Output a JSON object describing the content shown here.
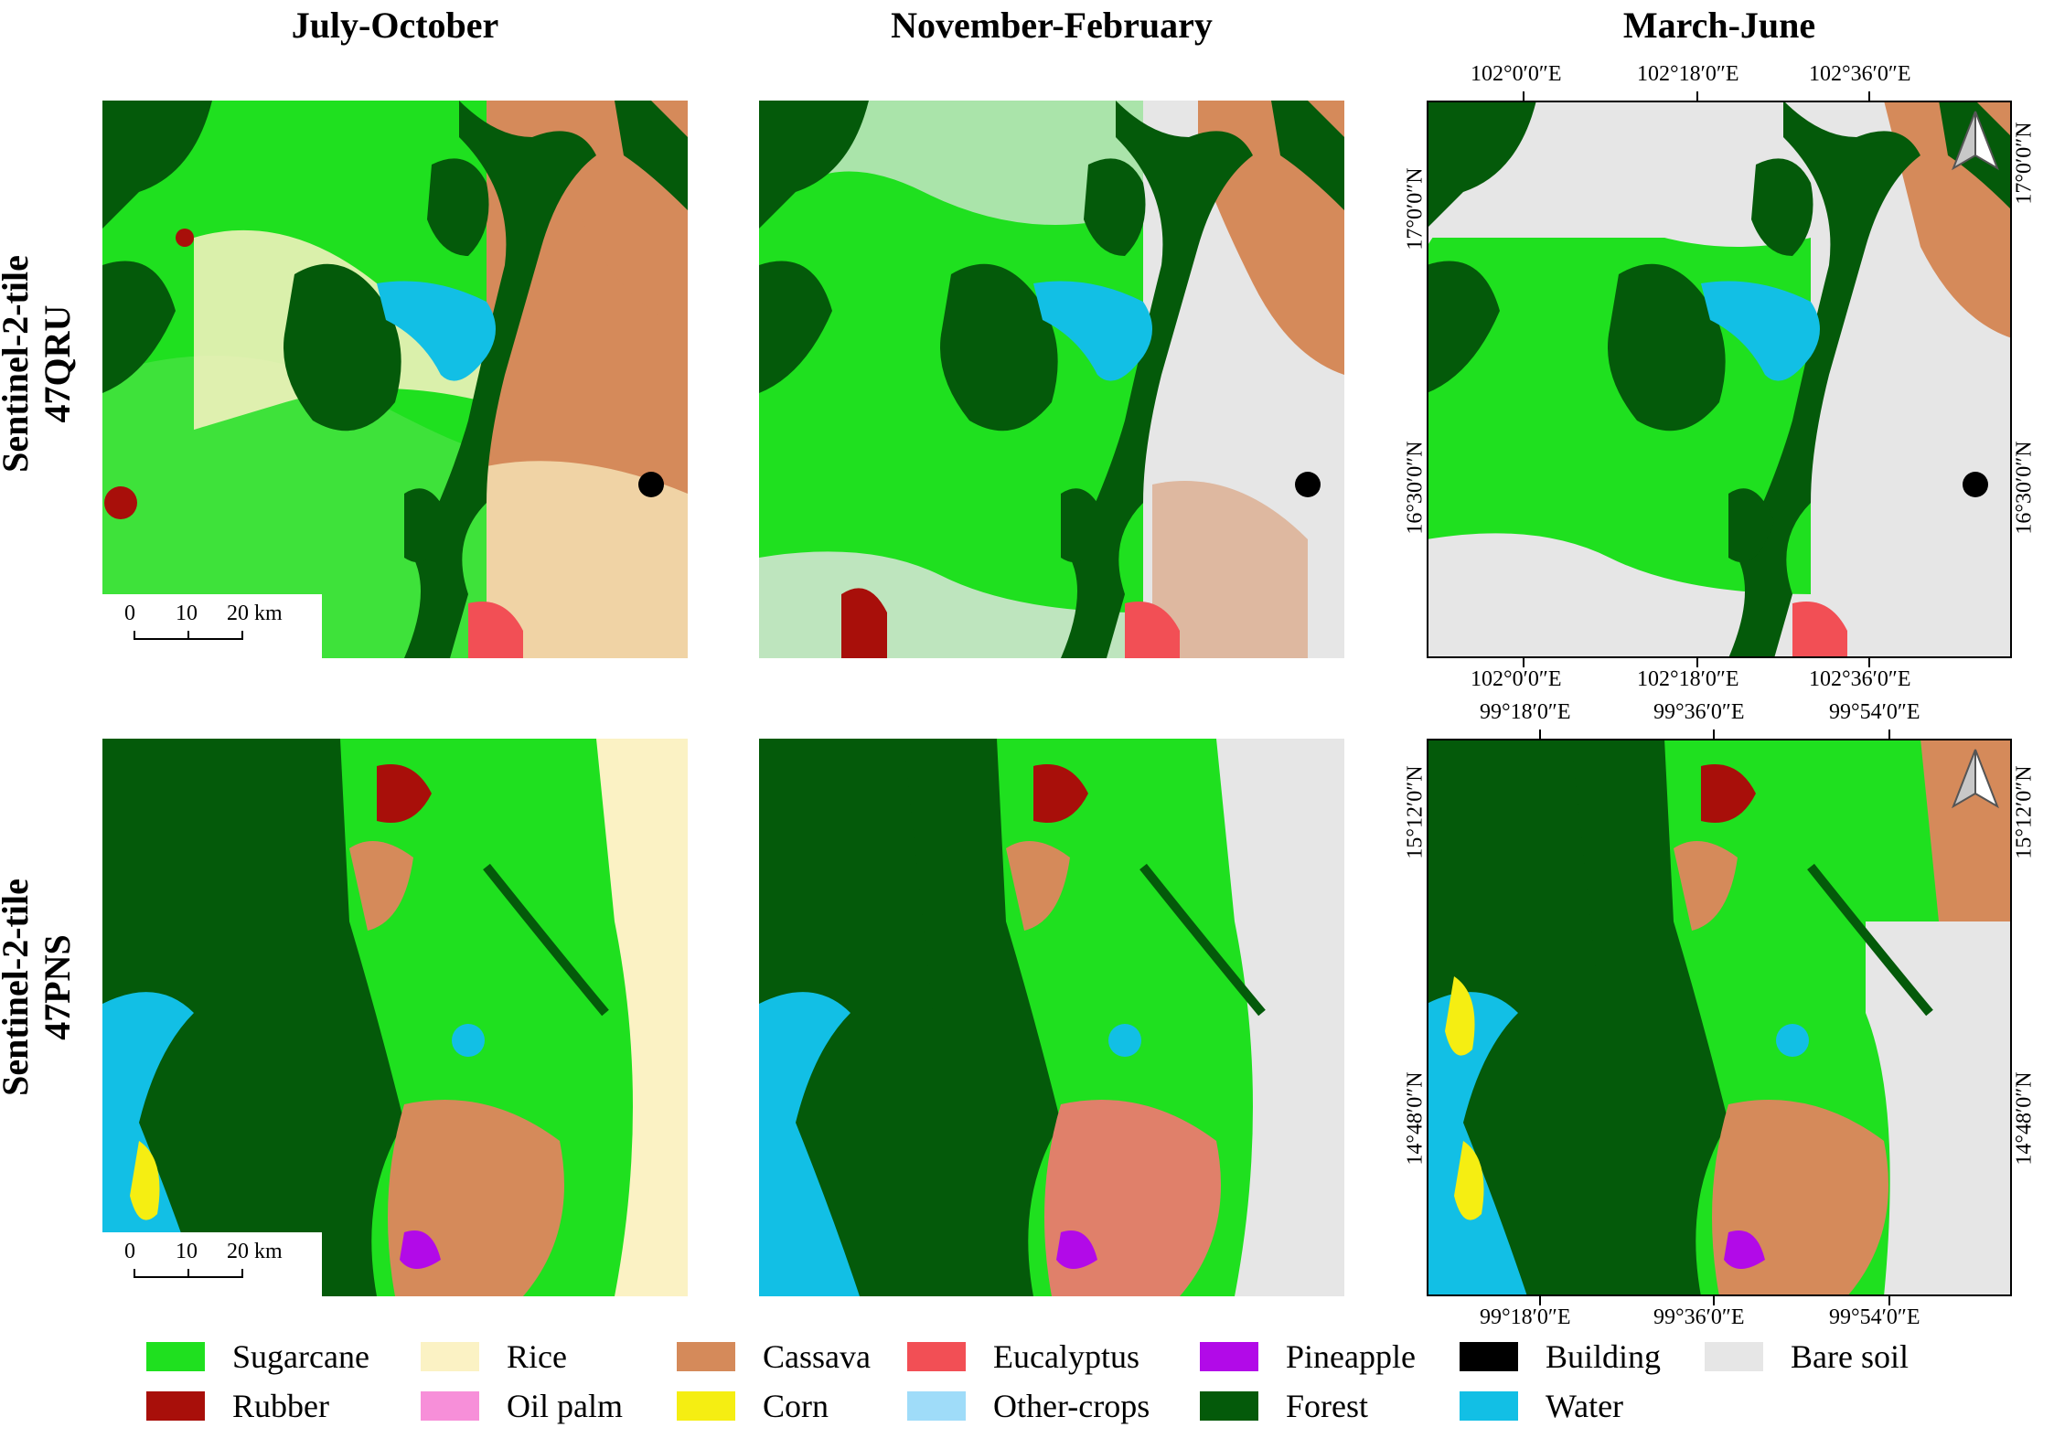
{
  "columns": [
    "July-October",
    "November-February",
    "March-June"
  ],
  "rows": [
    {
      "line1": "Sentinel-2-tile",
      "line2": "47QRU"
    },
    {
      "line1": "Sentinel-2-tile",
      "line2": "47PNS"
    }
  ],
  "scalebar": {
    "labels": [
      "0",
      "10",
      "20 km"
    ]
  },
  "grid_top": {
    "lon": [
      "102°0′0″E",
      "102°18′0″E",
      "102°36′0″E"
    ],
    "lat": [
      "17°0′0″N",
      "16°30′0″N"
    ]
  },
  "grid_bottom": {
    "lon": [
      "99°18′0″E",
      "99°36′0″E",
      "99°54′0″E"
    ],
    "lat": [
      "15°12′0″N",
      "14°48′0″N"
    ]
  },
  "legend": [
    {
      "label": "Sugarcane",
      "color": "#1fe01f"
    },
    {
      "label": "Rice",
      "color": "#fbf2c4"
    },
    {
      "label": "Cassava",
      "color": "#d58a5a"
    },
    {
      "label": "Eucalyptus",
      "color": "#f24f55"
    },
    {
      "label": "Pineapple",
      "color": "#b20ae8"
    },
    {
      "label": "Building",
      "color": "#000000"
    },
    {
      "label": "Bare soil",
      "color": "#e6e6e6"
    },
    {
      "label": "Rubber",
      "color": "#a80f0a"
    },
    {
      "label": "Oil palm",
      "color": "#f78fd9"
    },
    {
      "label": "Corn",
      "color": "#f5ee12"
    },
    {
      "label": "Other-crops",
      "color": "#9fdcf9"
    },
    {
      "label": "Forest",
      "color": "#045a0a"
    },
    {
      "label": "Water",
      "color": "#12bfe5"
    }
  ]
}
